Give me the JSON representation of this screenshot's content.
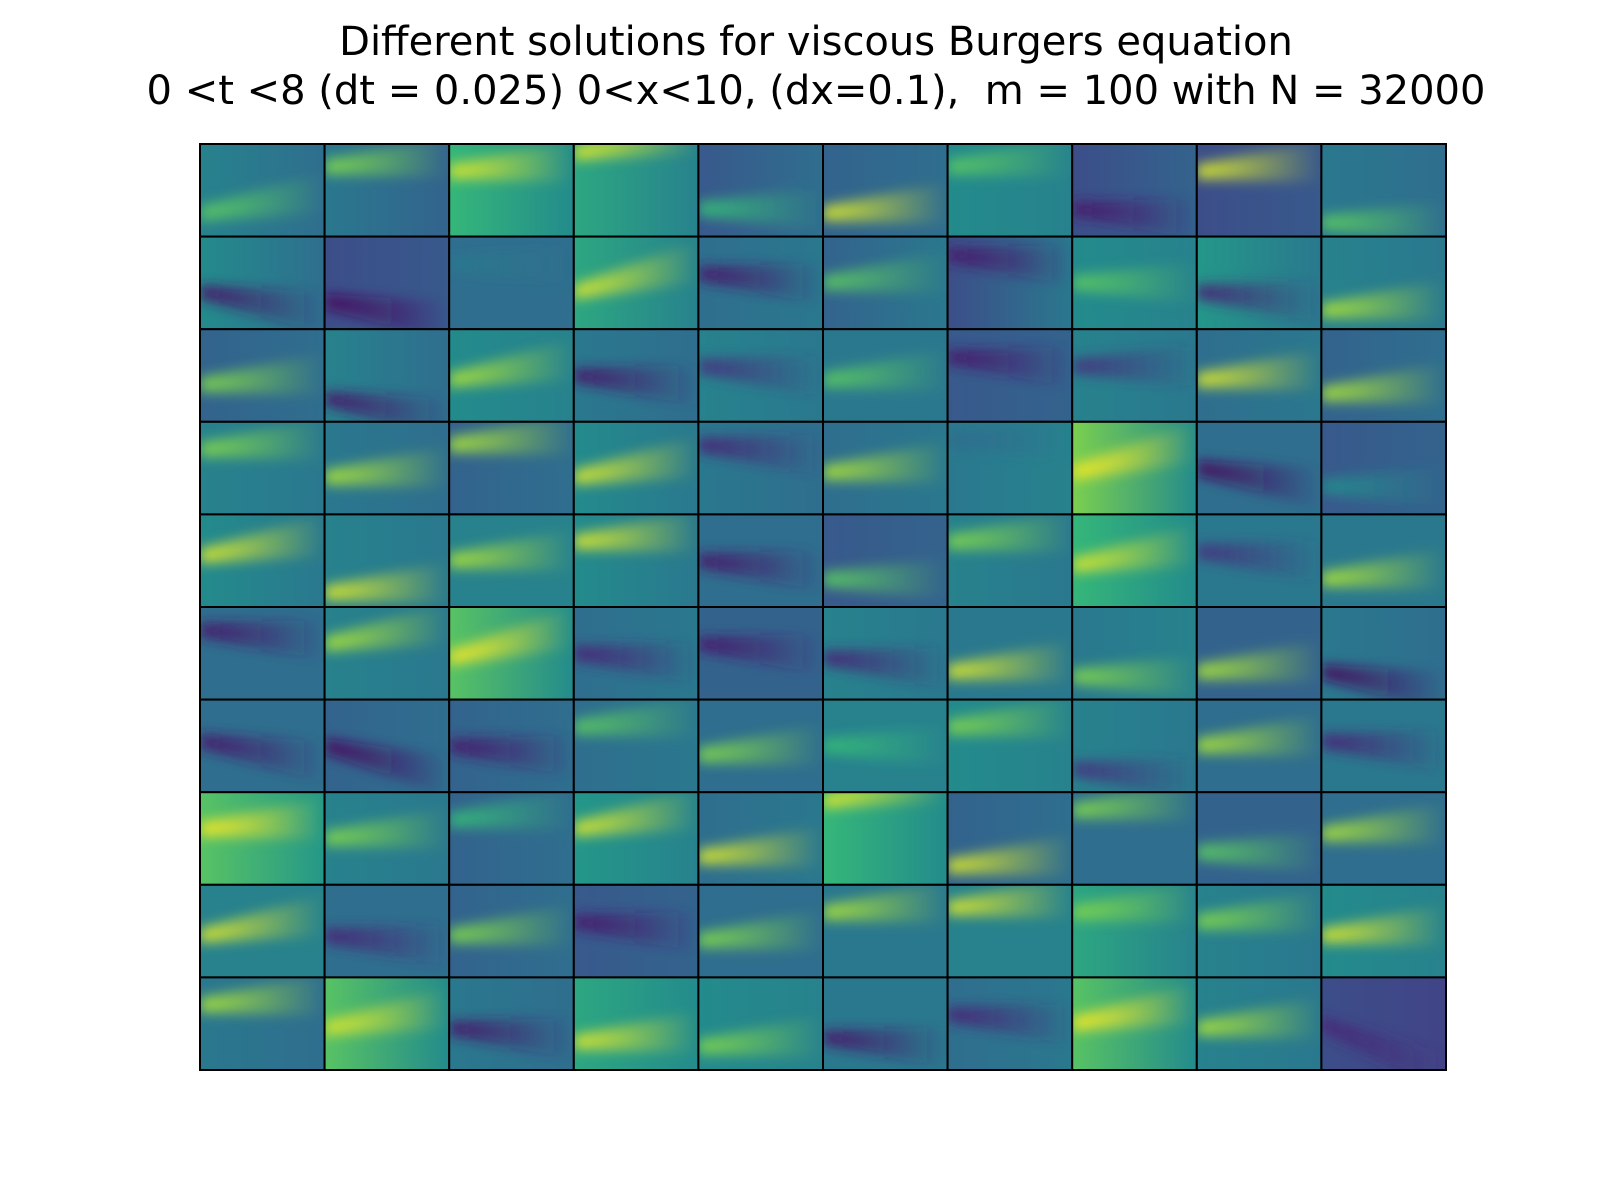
{
  "chart_data": {
    "type": "heatmap",
    "title": "Different solutions for viscous Burgers equation",
    "subtitle": "0 <t <8 (dt = 0.025) 0<x<10, (dx=0.1),  m = 100 with N = 32000",
    "rows": 10,
    "cols": 10,
    "colormap": "viridis",
    "axes_visible": false,
    "cell_border_color": "#000000",
    "panels": [
      {
        "row": 0,
        "col": 0,
        "left": 0.55,
        "right": 0.45,
        "band": 0.75,
        "peak": 0.8,
        "slope": 0.1
      },
      {
        "row": 0,
        "col": 1,
        "left": 0.5,
        "right": 0.4,
        "band": 0.25,
        "peak": 0.85,
        "slope": 0.05
      },
      {
        "row": 0,
        "col": 2,
        "left": 0.75,
        "right": 0.6,
        "band": 0.3,
        "peak": 0.95,
        "slope": 0.05
      },
      {
        "row": 0,
        "col": 3,
        "left": 0.7,
        "right": 0.55,
        "band": 0.1,
        "peak": 0.95,
        "slope": 0.1
      },
      {
        "row": 0,
        "col": 4,
        "left": 0.35,
        "right": 0.45,
        "band": 0.7,
        "peak": 0.75,
        "slope": 0.0
      },
      {
        "row": 0,
        "col": 5,
        "left": 0.4,
        "right": 0.45,
        "band": 0.75,
        "peak": 0.95,
        "slope": 0.05
      },
      {
        "row": 0,
        "col": 6,
        "left": 0.6,
        "right": 0.55,
        "band": 0.25,
        "peak": 0.8,
        "slope": 0.05
      },
      {
        "row": 0,
        "col": 7,
        "left": 0.3,
        "right": 0.4,
        "band": 0.7,
        "peak": 0.1,
        "slope": -0.05
      },
      {
        "row": 0,
        "col": 8,
        "left": 0.3,
        "right": 0.35,
        "band": 0.3,
        "peak": 0.95,
        "slope": 0.05
      },
      {
        "row": 0,
        "col": 9,
        "left": 0.5,
        "right": 0.45,
        "band": 0.85,
        "peak": 0.8,
        "slope": 0.0
      },
      {
        "row": 1,
        "col": 0,
        "left": 0.6,
        "right": 0.45,
        "band": 0.6,
        "peak": 0.1,
        "slope": -0.1
      },
      {
        "row": 1,
        "col": 1,
        "left": 0.3,
        "right": 0.35,
        "band": 0.7,
        "peak": 0.05,
        "slope": -0.1
      },
      {
        "row": 1,
        "col": 2,
        "left": 0.45,
        "right": 0.45,
        "band": 0.3,
        "peak": 0.5,
        "slope": 0.0
      },
      {
        "row": 1,
        "col": 3,
        "left": 0.7,
        "right": 0.55,
        "band": 0.6,
        "peak": 0.95,
        "slope": 0.15
      },
      {
        "row": 1,
        "col": 4,
        "left": 0.45,
        "right": 0.5,
        "band": 0.4,
        "peak": 0.1,
        "slope": -0.05
      },
      {
        "row": 1,
        "col": 5,
        "left": 0.4,
        "right": 0.5,
        "band": 0.5,
        "peak": 0.8,
        "slope": 0.05
      },
      {
        "row": 1,
        "col": 6,
        "left": 0.3,
        "right": 0.5,
        "band": 0.2,
        "peak": 0.1,
        "slope": -0.05
      },
      {
        "row": 1,
        "col": 7,
        "left": 0.6,
        "right": 0.55,
        "band": 0.5,
        "peak": 0.8,
        "slope": 0.0
      },
      {
        "row": 1,
        "col": 8,
        "left": 0.65,
        "right": 0.5,
        "band": 0.6,
        "peak": 0.15,
        "slope": -0.05
      },
      {
        "row": 1,
        "col": 9,
        "left": 0.55,
        "right": 0.5,
        "band": 0.8,
        "peak": 0.9,
        "slope": 0.05
      },
      {
        "row": 2,
        "col": 0,
        "left": 0.4,
        "right": 0.45,
        "band": 0.6,
        "peak": 0.85,
        "slope": 0.05
      },
      {
        "row": 2,
        "col": 1,
        "left": 0.55,
        "right": 0.45,
        "band": 0.75,
        "peak": 0.1,
        "slope": -0.1
      },
      {
        "row": 2,
        "col": 2,
        "left": 0.6,
        "right": 0.55,
        "band": 0.55,
        "peak": 0.9,
        "slope": 0.1
      },
      {
        "row": 2,
        "col": 3,
        "left": 0.5,
        "right": 0.45,
        "band": 0.5,
        "peak": 0.1,
        "slope": -0.05
      },
      {
        "row": 2,
        "col": 4,
        "left": 0.55,
        "right": 0.5,
        "band": 0.4,
        "peak": 0.2,
        "slope": -0.05
      },
      {
        "row": 2,
        "col": 5,
        "left": 0.5,
        "right": 0.5,
        "band": 0.55,
        "peak": 0.8,
        "slope": 0.05
      },
      {
        "row": 2,
        "col": 6,
        "left": 0.35,
        "right": 0.4,
        "band": 0.3,
        "peak": 0.1,
        "slope": -0.05
      },
      {
        "row": 2,
        "col": 7,
        "left": 0.55,
        "right": 0.5,
        "band": 0.4,
        "peak": 0.2,
        "slope": 0.0
      },
      {
        "row": 2,
        "col": 8,
        "left": 0.45,
        "right": 0.5,
        "band": 0.55,
        "peak": 0.95,
        "slope": 0.05
      },
      {
        "row": 2,
        "col": 9,
        "left": 0.4,
        "right": 0.45,
        "band": 0.7,
        "peak": 0.9,
        "slope": 0.05
      },
      {
        "row": 3,
        "col": 0,
        "left": 0.55,
        "right": 0.5,
        "band": 0.3,
        "peak": 0.85,
        "slope": 0.05
      },
      {
        "row": 3,
        "col": 1,
        "left": 0.5,
        "right": 0.45,
        "band": 0.6,
        "peak": 0.9,
        "slope": 0.05
      },
      {
        "row": 3,
        "col": 2,
        "left": 0.4,
        "right": 0.45,
        "band": 0.25,
        "peak": 0.9,
        "slope": 0.05
      },
      {
        "row": 3,
        "col": 3,
        "left": 0.6,
        "right": 0.5,
        "band": 0.6,
        "peak": 0.95,
        "slope": 0.1
      },
      {
        "row": 3,
        "col": 4,
        "left": 0.5,
        "right": 0.45,
        "band": 0.25,
        "peak": 0.15,
        "slope": -0.05
      },
      {
        "row": 3,
        "col": 5,
        "left": 0.45,
        "right": 0.5,
        "band": 0.55,
        "peak": 0.9,
        "slope": 0.05
      },
      {
        "row": 3,
        "col": 6,
        "left": 0.5,
        "right": 0.55,
        "band": 0.2,
        "peak": 0.45,
        "slope": 0.0
      },
      {
        "row": 3,
        "col": 7,
        "left": 0.85,
        "right": 0.6,
        "band": 0.55,
        "peak": 0.98,
        "slope": 0.15
      },
      {
        "row": 3,
        "col": 8,
        "left": 0.45,
        "right": 0.45,
        "band": 0.5,
        "peak": 0.05,
        "slope": -0.1
      },
      {
        "row": 3,
        "col": 9,
        "left": 0.35,
        "right": 0.4,
        "band": 0.7,
        "peak": 0.6,
        "slope": 0.0
      },
      {
        "row": 4,
        "col": 0,
        "left": 0.6,
        "right": 0.5,
        "band": 0.45,
        "peak": 0.95,
        "slope": 0.1
      },
      {
        "row": 4,
        "col": 1,
        "left": 0.55,
        "right": 0.5,
        "band": 0.85,
        "peak": 0.95,
        "slope": 0.05
      },
      {
        "row": 4,
        "col": 2,
        "left": 0.55,
        "right": 0.55,
        "band": 0.5,
        "peak": 0.9,
        "slope": 0.05
      },
      {
        "row": 4,
        "col": 3,
        "left": 0.6,
        "right": 0.5,
        "band": 0.3,
        "peak": 0.95,
        "slope": 0.05
      },
      {
        "row": 4,
        "col": 4,
        "left": 0.45,
        "right": 0.45,
        "band": 0.5,
        "peak": 0.1,
        "slope": -0.05
      },
      {
        "row": 4,
        "col": 5,
        "left": 0.35,
        "right": 0.4,
        "band": 0.7,
        "peak": 0.8,
        "slope": 0.0
      },
      {
        "row": 4,
        "col": 6,
        "left": 0.55,
        "right": 0.5,
        "band": 0.3,
        "peak": 0.85,
        "slope": 0.05
      },
      {
        "row": 4,
        "col": 7,
        "left": 0.75,
        "right": 0.6,
        "band": 0.55,
        "peak": 0.95,
        "slope": 0.1
      },
      {
        "row": 4,
        "col": 8,
        "left": 0.5,
        "right": 0.5,
        "band": 0.4,
        "peak": 0.2,
        "slope": -0.05
      },
      {
        "row": 4,
        "col": 9,
        "left": 0.5,
        "right": 0.5,
        "band": 0.7,
        "peak": 0.9,
        "slope": 0.05
      },
      {
        "row": 5,
        "col": 0,
        "left": 0.45,
        "right": 0.45,
        "band": 0.25,
        "peak": 0.1,
        "slope": -0.05
      },
      {
        "row": 5,
        "col": 1,
        "left": 0.55,
        "right": 0.5,
        "band": 0.4,
        "peak": 0.9,
        "slope": 0.1
      },
      {
        "row": 5,
        "col": 2,
        "left": 0.8,
        "right": 0.6,
        "band": 0.55,
        "peak": 0.98,
        "slope": 0.15
      },
      {
        "row": 5,
        "col": 3,
        "left": 0.45,
        "right": 0.5,
        "band": 0.5,
        "peak": 0.15,
        "slope": -0.05
      },
      {
        "row": 5,
        "col": 4,
        "left": 0.4,
        "right": 0.4,
        "band": 0.4,
        "peak": 0.1,
        "slope": -0.05
      },
      {
        "row": 5,
        "col": 5,
        "left": 0.55,
        "right": 0.5,
        "band": 0.55,
        "peak": 0.15,
        "slope": -0.05
      },
      {
        "row": 5,
        "col": 6,
        "left": 0.5,
        "right": 0.5,
        "band": 0.7,
        "peak": 0.95,
        "slope": 0.05
      },
      {
        "row": 5,
        "col": 7,
        "left": 0.5,
        "right": 0.55,
        "band": 0.75,
        "peak": 0.85,
        "slope": 0.0
      },
      {
        "row": 5,
        "col": 8,
        "left": 0.4,
        "right": 0.4,
        "band": 0.7,
        "peak": 0.9,
        "slope": 0.05
      },
      {
        "row": 5,
        "col": 9,
        "left": 0.5,
        "right": 0.45,
        "band": 0.7,
        "peak": 0.05,
        "slope": -0.1
      },
      {
        "row": 6,
        "col": 0,
        "left": 0.45,
        "right": 0.45,
        "band": 0.45,
        "peak": 0.1,
        "slope": -0.1
      },
      {
        "row": 6,
        "col": 1,
        "left": 0.4,
        "right": 0.45,
        "band": 0.5,
        "peak": 0.05,
        "slope": -0.15
      },
      {
        "row": 6,
        "col": 2,
        "left": 0.4,
        "right": 0.45,
        "band": 0.5,
        "peak": 0.1,
        "slope": -0.05
      },
      {
        "row": 6,
        "col": 3,
        "left": 0.45,
        "right": 0.5,
        "band": 0.3,
        "peak": 0.8,
        "slope": 0.05
      },
      {
        "row": 6,
        "col": 4,
        "left": 0.45,
        "right": 0.45,
        "band": 0.6,
        "peak": 0.85,
        "slope": 0.05
      },
      {
        "row": 6,
        "col": 5,
        "left": 0.55,
        "right": 0.55,
        "band": 0.5,
        "peak": 0.75,
        "slope": 0.0
      },
      {
        "row": 6,
        "col": 6,
        "left": 0.6,
        "right": 0.55,
        "band": 0.3,
        "peak": 0.85,
        "slope": 0.05
      },
      {
        "row": 6,
        "col": 7,
        "left": 0.55,
        "right": 0.5,
        "band": 0.75,
        "peak": 0.2,
        "slope": -0.05
      },
      {
        "row": 6,
        "col": 8,
        "left": 0.45,
        "right": 0.45,
        "band": 0.5,
        "peak": 0.9,
        "slope": 0.05
      },
      {
        "row": 6,
        "col": 9,
        "left": 0.5,
        "right": 0.5,
        "band": 0.45,
        "peak": 0.15,
        "slope": -0.05
      },
      {
        "row": 7,
        "col": 0,
        "left": 0.8,
        "right": 0.65,
        "band": 0.4,
        "peak": 0.98,
        "slope": 0.05
      },
      {
        "row": 7,
        "col": 1,
        "left": 0.55,
        "right": 0.5,
        "band": 0.5,
        "peak": 0.85,
        "slope": 0.05
      },
      {
        "row": 7,
        "col": 2,
        "left": 0.4,
        "right": 0.45,
        "band": 0.3,
        "peak": 0.75,
        "slope": 0.05
      },
      {
        "row": 7,
        "col": 3,
        "left": 0.65,
        "right": 0.55,
        "band": 0.4,
        "peak": 0.95,
        "slope": 0.1
      },
      {
        "row": 7,
        "col": 4,
        "left": 0.45,
        "right": 0.5,
        "band": 0.7,
        "peak": 0.95,
        "slope": 0.05
      },
      {
        "row": 7,
        "col": 5,
        "left": 0.75,
        "right": 0.6,
        "band": 0.1,
        "peak": 0.95,
        "slope": 0.1
      },
      {
        "row": 7,
        "col": 6,
        "left": 0.4,
        "right": 0.45,
        "band": 0.8,
        "peak": 0.95,
        "slope": 0.05
      },
      {
        "row": 7,
        "col": 7,
        "left": 0.45,
        "right": 0.45,
        "band": 0.2,
        "peak": 0.85,
        "slope": 0.05
      },
      {
        "row": 7,
        "col": 8,
        "left": 0.4,
        "right": 0.4,
        "band": 0.65,
        "peak": 0.8,
        "slope": 0.0
      },
      {
        "row": 7,
        "col": 9,
        "left": 0.45,
        "right": 0.45,
        "band": 0.45,
        "peak": 0.9,
        "slope": 0.05
      },
      {
        "row": 8,
        "col": 0,
        "left": 0.55,
        "right": 0.55,
        "band": 0.55,
        "peak": 0.95,
        "slope": 0.1
      },
      {
        "row": 8,
        "col": 1,
        "left": 0.45,
        "right": 0.45,
        "band": 0.55,
        "peak": 0.15,
        "slope": -0.05
      },
      {
        "row": 8,
        "col": 2,
        "left": 0.4,
        "right": 0.45,
        "band": 0.55,
        "peak": 0.85,
        "slope": 0.05
      },
      {
        "row": 8,
        "col": 3,
        "left": 0.35,
        "right": 0.4,
        "band": 0.4,
        "peak": 0.1,
        "slope": -0.05
      },
      {
        "row": 8,
        "col": 4,
        "left": 0.45,
        "right": 0.45,
        "band": 0.6,
        "peak": 0.85,
        "slope": 0.05
      },
      {
        "row": 8,
        "col": 5,
        "left": 0.5,
        "right": 0.5,
        "band": 0.3,
        "peak": 0.9,
        "slope": 0.05
      },
      {
        "row": 8,
        "col": 6,
        "left": 0.55,
        "right": 0.55,
        "band": 0.25,
        "peak": 0.95,
        "slope": 0.05
      },
      {
        "row": 8,
        "col": 7,
        "left": 0.7,
        "right": 0.55,
        "band": 0.3,
        "peak": 0.85,
        "slope": 0.05
      },
      {
        "row": 8,
        "col": 8,
        "left": 0.55,
        "right": 0.5,
        "band": 0.4,
        "peak": 0.85,
        "slope": 0.05
      },
      {
        "row": 8,
        "col": 9,
        "left": 0.6,
        "right": 0.55,
        "band": 0.55,
        "peak": 0.95,
        "slope": 0.05
      },
      {
        "row": 9,
        "col": 0,
        "left": 0.5,
        "right": 0.45,
        "band": 0.3,
        "peak": 0.9,
        "slope": 0.05
      },
      {
        "row": 9,
        "col": 1,
        "left": 0.8,
        "right": 0.6,
        "band": 0.55,
        "peak": 0.95,
        "slope": 0.1
      },
      {
        "row": 9,
        "col": 2,
        "left": 0.5,
        "right": 0.45,
        "band": 0.55,
        "peak": 0.1,
        "slope": -0.05
      },
      {
        "row": 9,
        "col": 3,
        "left": 0.7,
        "right": 0.6,
        "band": 0.7,
        "peak": 0.95,
        "slope": 0.05
      },
      {
        "row": 9,
        "col": 4,
        "left": 0.6,
        "right": 0.55,
        "band": 0.75,
        "peak": 0.85,
        "slope": 0.05
      },
      {
        "row": 9,
        "col": 5,
        "left": 0.5,
        "right": 0.5,
        "band": 0.65,
        "peak": 0.1,
        "slope": -0.05
      },
      {
        "row": 9,
        "col": 6,
        "left": 0.45,
        "right": 0.5,
        "band": 0.4,
        "peak": 0.15,
        "slope": -0.05
      },
      {
        "row": 9,
        "col": 7,
        "left": 0.8,
        "right": 0.6,
        "band": 0.5,
        "peak": 0.98,
        "slope": 0.1
      },
      {
        "row": 9,
        "col": 8,
        "left": 0.55,
        "right": 0.5,
        "band": 0.55,
        "peak": 0.9,
        "slope": 0.05
      },
      {
        "row": 9,
        "col": 9,
        "left": 0.3,
        "right": 0.25,
        "band": 0.5,
        "peak": 0.15,
        "slope": -0.25
      }
    ]
  }
}
